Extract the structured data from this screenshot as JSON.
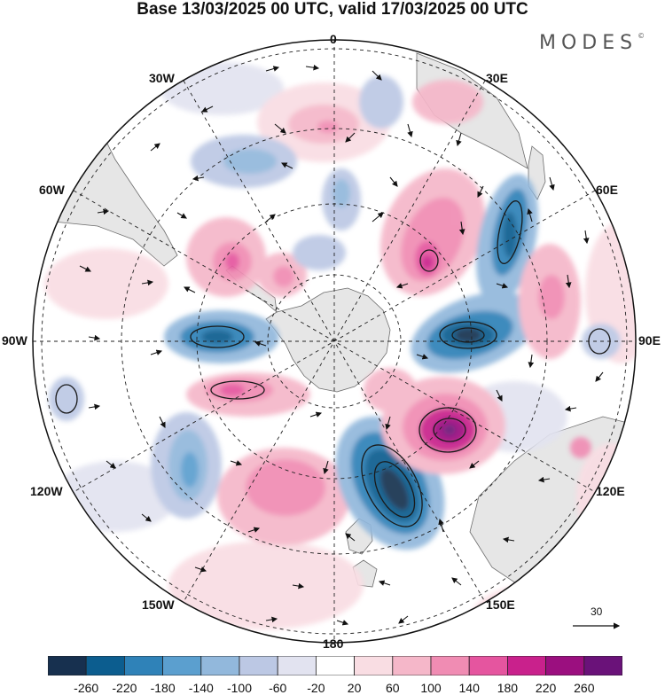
{
  "title": "Base 13/03/2025 00 UTC, valid 17/03/2025 00 UTC",
  "logo": "MODES",
  "logo_mark": "©",
  "longitude_labels": {
    "top": "0",
    "top_right": "30E",
    "upper_right": "60E",
    "right": "90E",
    "lower_right": "120E",
    "bottom_right": "150E",
    "bottom": "180",
    "bottom_left": "150W",
    "lower_left": "120W",
    "left": "90W",
    "upper_left": "60W",
    "top_left": "30W"
  },
  "colorbar": {
    "ticks": [
      "-260",
      "-220",
      "-180",
      "-140",
      "-100",
      "-60",
      "-20",
      "20",
      "60",
      "100",
      "140",
      "180",
      "220",
      "260"
    ],
    "colors": [
      "#17304f",
      "#0c5d8f",
      "#2f82b8",
      "#5b9fcf",
      "#92b8dc",
      "#bcc8e4",
      "#e2e3f0",
      "#ffffff",
      "#f9dde3",
      "#f5b7c9",
      "#f08cb3",
      "#e5559f",
      "#c9218c",
      "#9b0f7f",
      "#6a1279"
    ]
  },
  "reference_vector": {
    "value": "30"
  },
  "colors": {
    "land": "#e6e6e6",
    "coast": "#6d6d6d",
    "grid": "#222222"
  }
}
